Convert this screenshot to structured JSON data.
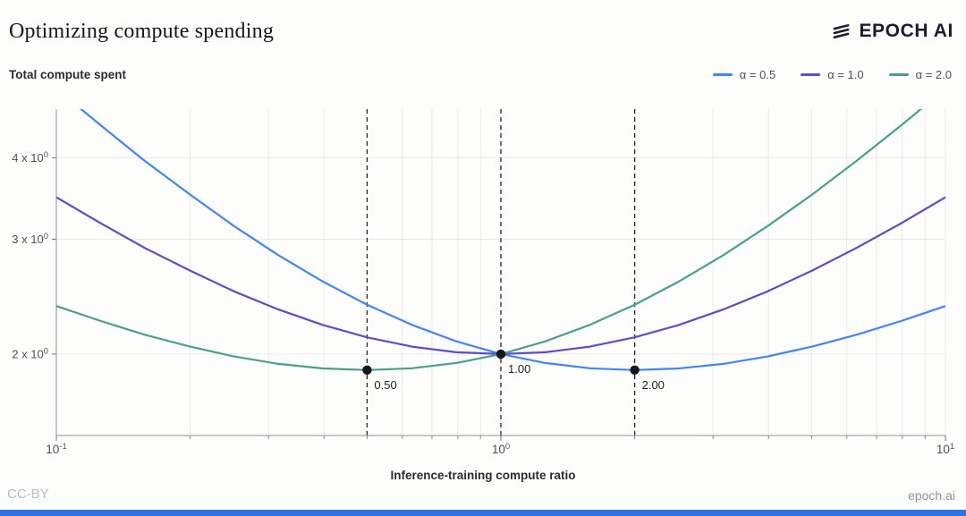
{
  "header": {
    "title": "Optimizing compute spending",
    "logo_text": "EPOCH AI"
  },
  "footer": {
    "license": "CC-BY",
    "site": "epoch.ai"
  },
  "brand": {
    "bottom_bar_color": "#2f72e4",
    "logo_color": "#191d2e"
  },
  "chart_data": {
    "type": "line",
    "title": "Optimizing compute spending",
    "xlabel": "Inference-training compute ratio",
    "ylabel": "Total compute spent",
    "x_scale": "log",
    "y_scale": "log",
    "xlim": [
      0.1,
      10
    ],
    "ylim": [
      1.5,
      4.75
    ],
    "grid": true,
    "legend_position": "top-right",
    "x": [
      0.1,
      0.126,
      0.158,
      0.2,
      0.251,
      0.316,
      0.398,
      0.501,
      0.631,
      0.794,
      1.0,
      1.259,
      1.585,
      1.995,
      2.512,
      3.162,
      3.981,
      5.012,
      6.31,
      7.943,
      10.0
    ],
    "series": [
      {
        "name": "α = 0.5",
        "color": "#4285f4",
        "values": [
          5.106,
          4.482,
          3.956,
          3.512,
          3.143,
          2.835,
          2.583,
          2.379,
          2.217,
          2.092,
          2.0,
          1.938,
          1.902,
          1.89,
          1.901,
          1.932,
          1.983,
          2.053,
          2.141,
          2.247,
          2.37
        ]
      },
      {
        "name": "α = 1.0",
        "color": "#5b4fc4",
        "values": [
          3.479,
          3.173,
          2.91,
          2.685,
          2.496,
          2.341,
          2.216,
          2.121,
          2.053,
          2.013,
          2.0,
          2.013,
          2.053,
          2.121,
          2.216,
          2.341,
          2.496,
          2.685,
          2.91,
          3.173,
          3.479
        ]
      },
      {
        "name": "α = 2.0",
        "color": "#4aa088",
        "values": [
          2.37,
          2.247,
          2.141,
          2.053,
          1.983,
          1.932,
          1.901,
          1.89,
          1.902,
          1.938,
          2.0,
          2.092,
          2.217,
          2.379,
          2.583,
          2.835,
          3.143,
          3.512,
          3.956,
          4.482,
          5.106
        ]
      }
    ],
    "annotations": [
      {
        "x": 0.5,
        "y": 1.89,
        "label": "0.50"
      },
      {
        "x": 1.0,
        "y": 2.0,
        "label": "1.00"
      },
      {
        "x": 2.0,
        "y": 1.89,
        "label": "2.00"
      }
    ],
    "x_ticks": [
      {
        "value": 0.1,
        "base": "10",
        "exp": "-1"
      },
      {
        "value": 1,
        "base": "10",
        "exp": "0"
      },
      {
        "value": 10,
        "base": "10",
        "exp": "1"
      }
    ],
    "x_gridlines": [
      0.1,
      0.2,
      0.3,
      0.4,
      0.5,
      0.6,
      0.7,
      0.8,
      0.9,
      1,
      2,
      3,
      4,
      5,
      6,
      7,
      8,
      9,
      10
    ],
    "y_ticks": [
      {
        "value": 2,
        "base": "2 x 10",
        "exp": "0"
      },
      {
        "value": 3,
        "base": "3 x 10",
        "exp": "0"
      },
      {
        "value": 4,
        "base": "4 x 10",
        "exp": "0"
      }
    ]
  }
}
